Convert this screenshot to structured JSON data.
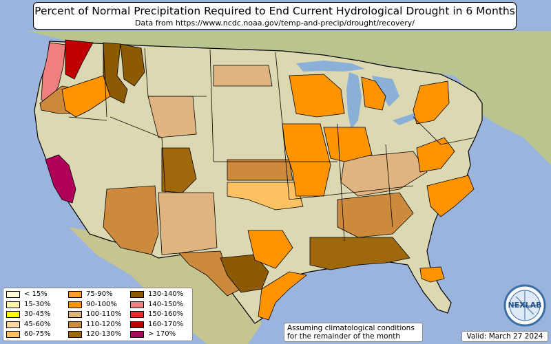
{
  "title": "Percent of Normal Precipitation Required to End Current Hydrological Drought in 6 Months",
  "subtitle": "Data from https://www.ncdc.noaa.gov/temp-and-precip/drought/recovery/",
  "note_line1": "Assuming climatological conditions",
  "note_line2": "for the remainder of the month",
  "valid": "Valid: March 27 2024",
  "logo": {
    "text": "NEXLAB",
    "icon": "globe-logo-icon"
  },
  "colors": {
    "ocean": "#9ab4dd",
    "land": "#dcd9b2",
    "lakes": "#8ab0d8",
    "border": "#000000",
    "canada_mexico": "#b9c48f"
  },
  "legend": [
    {
      "label": "< 15%",
      "color": "#fffbd6"
    },
    {
      "label": "15-30%",
      "color": "#fff3a8"
    },
    {
      "label": "30-45%",
      "color": "#ffff00"
    },
    {
      "label": "45-60%",
      "color": "#fdd9a0"
    },
    {
      "label": "60-75%",
      "color": "#fcc163"
    },
    {
      "label": "75-90%",
      "color": "#ff9f2b"
    },
    {
      "label": "90-100%",
      "color": "#ff9400"
    },
    {
      "label": "100-110%",
      "color": "#e0b480"
    },
    {
      "label": "110-120%",
      "color": "#cd8a3d"
    },
    {
      "label": "120-130%",
      "color": "#a0680c"
    },
    {
      "label": "130-140%",
      "color": "#8c5a00"
    },
    {
      "label": "140-150%",
      "color": "#f08080"
    },
    {
      "label": "150-160%",
      "color": "#e03030"
    },
    {
      "label": "160-170%",
      "color": "#c00000"
    },
    {
      "label": "> 170%",
      "color": "#b0005a"
    }
  ],
  "regions": [
    {
      "name": "washington-coast",
      "color": "#f08080"
    },
    {
      "name": "washington-cascades",
      "color": "#c00000"
    },
    {
      "name": "oregon-coast",
      "color": "#cd8a3d"
    },
    {
      "name": "idaho-panhandle",
      "color": "#8c5a00"
    },
    {
      "name": "montana-west",
      "color": "#8c5a00"
    },
    {
      "name": "oregon-east",
      "color": "#ff9400"
    },
    {
      "name": "california-central-valley",
      "color": "#b0005a"
    },
    {
      "name": "arizona",
      "color": "#cd8a3d"
    },
    {
      "name": "new-mexico",
      "color": "#e0b480"
    },
    {
      "name": "colorado-west",
      "color": "#a0680c"
    },
    {
      "name": "texas-west",
      "color": "#cd8a3d"
    },
    {
      "name": "texas-central",
      "color": "#8c5a00"
    },
    {
      "name": "texas-north",
      "color": "#ff9400"
    },
    {
      "name": "texas-gulf",
      "color": "#ff9400"
    },
    {
      "name": "kansas",
      "color": "#cd8a3d"
    },
    {
      "name": "oklahoma",
      "color": "#fcc163"
    },
    {
      "name": "iowa-missouri",
      "color": "#ff9400"
    },
    {
      "name": "minnesota-wisconsin",
      "color": "#ff9400"
    },
    {
      "name": "michigan",
      "color": "#ff9400"
    },
    {
      "name": "ohio-valley",
      "color": "#e0b480"
    },
    {
      "name": "southeast",
      "color": "#cd8a3d"
    },
    {
      "name": "gulf-coast",
      "color": "#a0680c"
    },
    {
      "name": "carolinas",
      "color": "#ff9400"
    },
    {
      "name": "virginia",
      "color": "#ff9400"
    },
    {
      "name": "florida-north",
      "color": "#ff9400"
    },
    {
      "name": "new-york",
      "color": "#ff9400"
    },
    {
      "name": "north-dakota",
      "color": "#e0b480"
    },
    {
      "name": "wyoming",
      "color": "#e0b480"
    },
    {
      "name": "illinois-indiana",
      "color": "#ff9400"
    }
  ]
}
